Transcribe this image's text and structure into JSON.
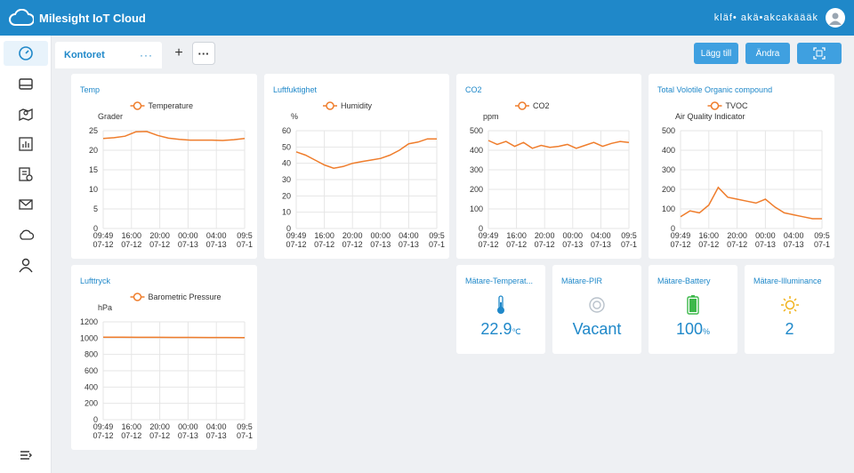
{
  "header": {
    "brand": "Milesight IoT Cloud",
    "user": "kläf• akä•akcakäääk"
  },
  "sidebar": {
    "items": [
      {
        "name": "dashboard",
        "icon": "gauge-icon",
        "active": true
      },
      {
        "name": "devices",
        "icon": "device-icon"
      },
      {
        "name": "map",
        "icon": "map-icon"
      },
      {
        "name": "reports",
        "icon": "report-icon"
      },
      {
        "name": "rules",
        "icon": "rule-icon"
      },
      {
        "name": "messages",
        "icon": "mail-icon"
      },
      {
        "name": "cloud",
        "icon": "cloud-icon"
      },
      {
        "name": "user",
        "icon": "user-icon"
      }
    ],
    "collapse_icon": "collapse-icon"
  },
  "tabs": {
    "active": "Kontoret",
    "more": "···",
    "add": "+",
    "menu": "···"
  },
  "toolbar": {
    "add_label": "Lägg till",
    "edit_label": "Ändra"
  },
  "colors": {
    "accent": "#1f88c9",
    "line": "#ef7d2c",
    "battery": "#3cb84a",
    "sun": "#f0b31e"
  },
  "x_labels": [
    [
      "09:49",
      "07-12"
    ],
    [
      "16:00",
      "07-12"
    ],
    [
      "20:00",
      "07-12"
    ],
    [
      "00:00",
      "07-13"
    ],
    [
      "04:00",
      "07-13"
    ],
    [
      "09:5",
      "07-1"
    ]
  ],
  "charts": [
    {
      "title": "Temp",
      "series": "Temperature",
      "unit": "Grader",
      "ylim": [
        0,
        25
      ],
      "yticks": [
        "25",
        "20",
        "15",
        "10",
        "5",
        "0"
      ],
      "values": [
        23.0,
        23.2,
        23.6,
        24.7,
        24.8,
        23.8,
        23.1,
        22.8,
        22.6,
        22.6,
        22.6,
        22.5,
        22.7,
        23.0
      ]
    },
    {
      "title": "Luftfuktighet",
      "series": "Humidity",
      "unit": "%",
      "ylim": [
        0,
        60
      ],
      "yticks": [
        "60",
        "50",
        "40",
        "30",
        "20",
        "10",
        "0"
      ],
      "values": [
        47,
        45,
        42,
        39,
        37,
        38,
        40,
        41,
        42,
        43,
        45,
        48,
        52,
        53,
        55,
        55
      ]
    },
    {
      "title": "CO2",
      "series": "CO2",
      "unit": "ppm",
      "ylim": [
        0,
        500
      ],
      "yticks": [
        "500",
        "400",
        "300",
        "200",
        "100",
        "0"
      ],
      "values": [
        450,
        430,
        445,
        420,
        440,
        410,
        425,
        415,
        420,
        430,
        410,
        425,
        440,
        420,
        435,
        445,
        440
      ]
    },
    {
      "title": "Total Volotile Organic compound",
      "series": "TVOC",
      "unit": "Air Quality Indicator",
      "ylim": [
        0,
        500
      ],
      "yticks": [
        "500",
        "400",
        "300",
        "200",
        "100",
        "0"
      ],
      "values": [
        60,
        90,
        80,
        120,
        210,
        160,
        150,
        140,
        130,
        150,
        110,
        80,
        70,
        60,
        50,
        50
      ]
    },
    {
      "title": "Lufttryck",
      "series": "Barometric Pressure",
      "unit": "hPa",
      "ylim": [
        0,
        1200
      ],
      "yticks": [
        "1200",
        "1000",
        "800",
        "600",
        "400",
        "200",
        "0"
      ],
      "values": [
        1012,
        1011,
        1010,
        1010,
        1009,
        1009,
        1008,
        1008,
        1007
      ]
    }
  ],
  "tiles": [
    {
      "title": "Mätare-Temperat...",
      "value": "22.9",
      "unit": "℃",
      "icon": "thermometer-icon"
    },
    {
      "title": "Mätare-PIR",
      "value": "Vacant",
      "unit": "",
      "icon": "motion-sensor-icon"
    },
    {
      "title": "Mätare-Battery",
      "value": "100",
      "unit": "%",
      "icon": "battery-icon"
    },
    {
      "title": "Mätare-Illuminance",
      "value": "2",
      "unit": "",
      "icon": "sun-icon"
    }
  ]
}
